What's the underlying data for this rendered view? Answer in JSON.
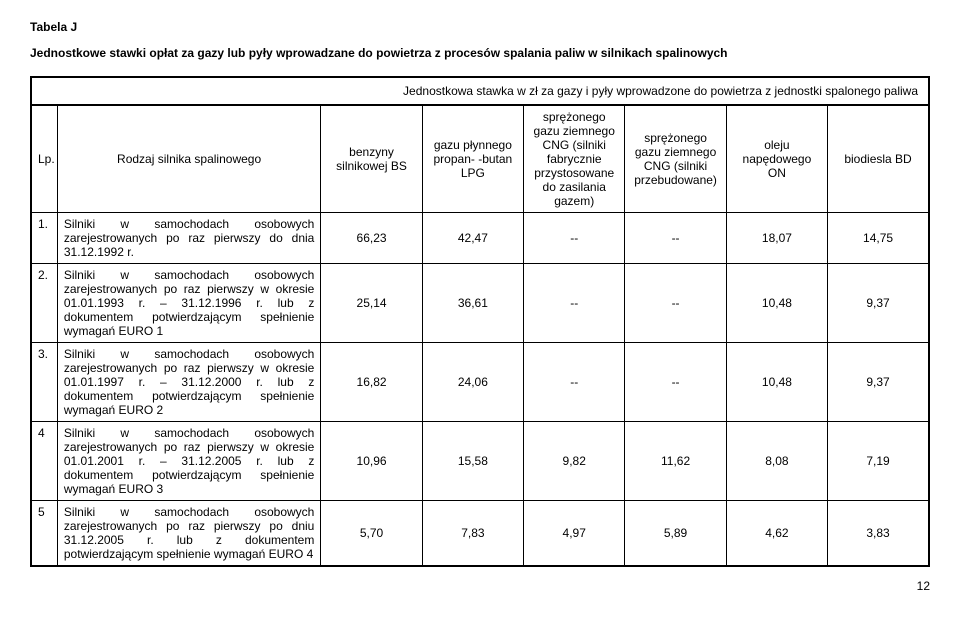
{
  "title": "Tabela J",
  "subtitle": "Jednostkowe stawki opłat za gazy lub pyły wprowadzane do powietrza z procesów spalania paliw w silnikach spalinowych",
  "topbox": "Jednostkowa stawka w zł za gazy i pyły wprowadzone do powietrza z jednostki spalonego paliwa",
  "headers": {
    "lp": "Lp.",
    "rodzaj": "Rodzaj silnika spalinowego",
    "c1": "benzyny silnikowej BS",
    "c2": "gazu płynnego propan- -butan LPG",
    "c3": "sprężonego gazu ziemnego CNG (silniki fabrycznie przystosowane do zasilania gazem)",
    "c4": "sprężonego gazu ziemnego CNG (silniki przebudowane)",
    "c5": "oleju napędowego ON",
    "c6": "biodiesla BD"
  },
  "rows": [
    {
      "lp": "1.",
      "desc": "Silniki w samochodach osobowych zarejestrowanych po raz pierwszy do dnia 31.12.1992 r.",
      "v": [
        "66,23",
        "42,47",
        "--",
        "--",
        "18,07",
        "14,75"
      ]
    },
    {
      "lp": "2.",
      "desc": "Silniki w samochodach osobowych zarejestrowanych po raz pierwszy w okresie 01.01.1993 r. – 31.12.1996 r. lub z dokumentem potwierdzającym spełnienie wymagań EURO 1",
      "v": [
        "25,14",
        "36,61",
        "--",
        "--",
        "10,48",
        "9,37"
      ]
    },
    {
      "lp": "3.",
      "desc": "Silniki w samochodach osobowych zarejestrowanych po raz pierwszy w okresie 01.01.1997 r. – 31.12.2000 r. lub z dokumentem potwierdzającym spełnienie wymagań EURO 2",
      "v": [
        "16,82",
        "24,06",
        "--",
        "--",
        "10,48",
        "9,37"
      ]
    },
    {
      "lp": "4",
      "desc": "Silniki w samochodach osobowych zarejestrowanych po raz pierwszy w okresie 01.01.2001 r. – 31.12.2005 r. lub z dokumentem potwierdzającym spełnienie wymagań EURO 3",
      "v": [
        "10,96",
        "15,58",
        "9,82",
        "11,62",
        "8,08",
        "7,19"
      ]
    },
    {
      "lp": "5",
      "desc": "Silniki w samochodach osobowych zarejestrowanych po raz pierwszy po dniu 31.12.2005 r. lub z dokumentem potwierdzającym spełnienie wymagań EURO 4",
      "v": [
        "5,70",
        "7,83",
        "4,97",
        "5,89",
        "4,62",
        "3,83"
      ]
    }
  ],
  "pagenum": "12"
}
